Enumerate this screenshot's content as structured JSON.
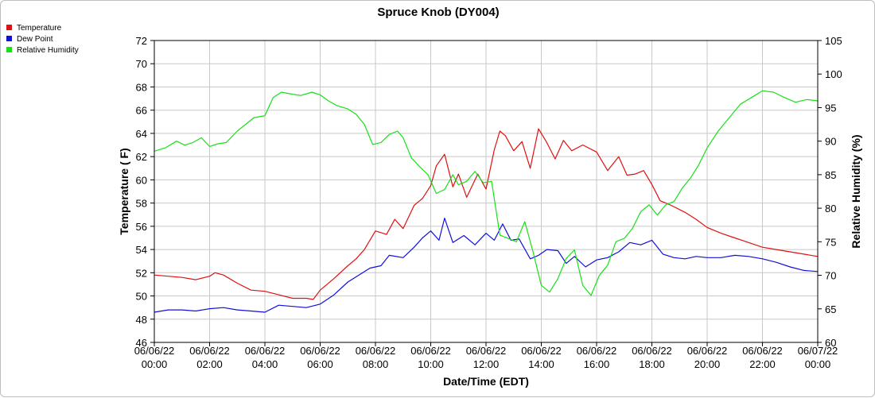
{
  "chart_data": {
    "type": "line",
    "title": "Spruce Knob (DY004)",
    "xlabel": "Date/Time (EDT)",
    "ylabel_left": "Temperature ( F)",
    "ylabel_right": "Relative Humidity (%)",
    "ylim_left": [
      46,
      72
    ],
    "ylim_right": [
      60,
      105
    ],
    "xlim_hours": [
      0,
      24
    ],
    "grid": true,
    "legend_position": "top-left",
    "y_ticks_left": [
      "46",
      "48",
      "50",
      "52",
      "54",
      "56",
      "58",
      "60",
      "62",
      "64",
      "66",
      "68",
      "70",
      "72"
    ],
    "y_ticks_right": [
      "60",
      "65",
      "70",
      "75",
      "80",
      "85",
      "90",
      "95",
      "100",
      "105"
    ],
    "x_tick_labels": [
      {
        "date": "06/06/22",
        "time": "00:00"
      },
      {
        "date": "06/06/22",
        "time": "02:00"
      },
      {
        "date": "06/06/22",
        "time": "04:00"
      },
      {
        "date": "06/06/22",
        "time": "06:00"
      },
      {
        "date": "06/06/22",
        "time": "08:00"
      },
      {
        "date": "06/06/22",
        "time": "10:00"
      },
      {
        "date": "06/06/22",
        "time": "12:00"
      },
      {
        "date": "06/06/22",
        "time": "14:00"
      },
      {
        "date": "06/06/22",
        "time": "16:00"
      },
      {
        "date": "06/06/22",
        "time": "18:00"
      },
      {
        "date": "06/06/22",
        "time": "20:00"
      },
      {
        "date": "06/06/22",
        "time": "22:00"
      },
      {
        "date": "06/07/22",
        "time": "00:00"
      }
    ],
    "series": [
      {
        "name": "Temperature",
        "axis": "left",
        "color": "#e01010",
        "hours": [
          0,
          0.5,
          1,
          1.5,
          2,
          2.2,
          2.5,
          3,
          3.5,
          4,
          4.5,
          5,
          5.5,
          5.75,
          6,
          6.5,
          7,
          7.3,
          7.6,
          8,
          8.4,
          8.7,
          9,
          9.4,
          9.7,
          10,
          10.2,
          10.5,
          10.8,
          11,
          11.3,
          11.7,
          12,
          12.3,
          12.5,
          12.7,
          13,
          13.3,
          13.6,
          13.9,
          14.2,
          14.5,
          14.8,
          15.1,
          15.5,
          16,
          16.4,
          16.8,
          17.1,
          17.4,
          17.7,
          18,
          18.3,
          18.7,
          19.2,
          19.6,
          20,
          20.5,
          21,
          21.5,
          22,
          22.5,
          23,
          23.5,
          24
        ],
        "values": [
          51.8,
          51.7,
          51.6,
          51.4,
          51.7,
          52,
          51.8,
          51.1,
          50.5,
          50.4,
          50.1,
          49.8,
          49.8,
          49.7,
          50.5,
          51.5,
          52.6,
          53.2,
          54,
          55.6,
          55.3,
          56.6,
          55.8,
          57.8,
          58.4,
          59.5,
          61.2,
          62.2,
          59.4,
          60.5,
          58.5,
          60.5,
          59.2,
          62.6,
          64.2,
          63.8,
          62.5,
          63.3,
          61,
          64.4,
          63.2,
          61.8,
          63.4,
          62.5,
          63,
          62.4,
          60.8,
          62,
          60.4,
          60.5,
          60.8,
          59.6,
          58.2,
          57.8,
          57.2,
          56.6,
          55.9,
          55.4,
          55,
          54.6,
          54.2,
          54,
          53.8,
          53.6,
          53.4
        ]
      },
      {
        "name": "Dew Point",
        "axis": "left",
        "color": "#1010d8",
        "hours": [
          0,
          0.5,
          1,
          1.5,
          2,
          2.5,
          3,
          3.5,
          4,
          4.5,
          5,
          5.5,
          6,
          6.5,
          7,
          7.4,
          7.8,
          8.2,
          8.5,
          9,
          9.4,
          9.7,
          10,
          10.3,
          10.5,
          10.8,
          11.2,
          11.6,
          12,
          12.3,
          12.6,
          12.9,
          13.2,
          13.6,
          13.9,
          14.2,
          14.6,
          14.9,
          15.2,
          15.6,
          16,
          16.4,
          16.8,
          17.2,
          17.6,
          18,
          18.4,
          18.8,
          19.2,
          19.6,
          20,
          20.5,
          21,
          21.5,
          22,
          22.5,
          23,
          23.5,
          24
        ],
        "values": [
          48.6,
          48.8,
          48.8,
          48.7,
          48.9,
          49,
          48.8,
          48.7,
          48.6,
          49.2,
          49.1,
          49,
          49.3,
          50.1,
          51.2,
          51.8,
          52.4,
          52.6,
          53.5,
          53.3,
          54.2,
          55,
          55.6,
          54.8,
          56.7,
          54.6,
          55.2,
          54.4,
          55.4,
          54.8,
          56.2,
          54.8,
          54.9,
          53.2,
          53.5,
          54,
          53.9,
          52.8,
          53.4,
          52.5,
          53.1,
          53.3,
          53.8,
          54.6,
          54.4,
          54.8,
          53.6,
          53.3,
          53.2,
          53.4,
          53.3,
          53.3,
          53.5,
          53.4,
          53.2,
          52.9,
          52.5,
          52.2,
          52.1
        ]
      },
      {
        "name": "Relative Humidity",
        "axis": "right",
        "color": "#18e018",
        "hours": [
          0,
          0.4,
          0.8,
          1.1,
          1.4,
          1.7,
          2,
          2.3,
          2.6,
          3,
          3.3,
          3.6,
          4,
          4.3,
          4.6,
          5,
          5.3,
          5.7,
          6,
          6.3,
          6.6,
          7,
          7.3,
          7.6,
          7.9,
          8.2,
          8.5,
          8.8,
          9,
          9.3,
          9.6,
          9.9,
          10.2,
          10.5,
          10.8,
          11,
          11.3,
          11.6,
          11.9,
          12.2,
          12.5,
          12.8,
          13.1,
          13.4,
          13.7,
          14,
          14.3,
          14.6,
          14.9,
          15.2,
          15.5,
          15.8,
          16.1,
          16.4,
          16.7,
          17,
          17.3,
          17.6,
          17.9,
          18.2,
          18.5,
          18.8,
          19.1,
          19.4,
          19.7,
          20,
          20.4,
          20.8,
          21.2,
          21.6,
          22,
          22.4,
          22.8,
          23.2,
          23.6,
          24
        ],
        "values": [
          88.5,
          89,
          90,
          89.4,
          89.8,
          90.5,
          89.2,
          89.6,
          89.8,
          91.5,
          92.5,
          93.5,
          93.8,
          96.5,
          97.3,
          97,
          96.8,
          97.3,
          96.9,
          96,
          95.3,
          94.8,
          94,
          92.5,
          89.5,
          89.8,
          91,
          91.5,
          90.5,
          87.5,
          86.2,
          85,
          82.2,
          82.8,
          85,
          83.5,
          84,
          85.5,
          83.8,
          84,
          76,
          75.5,
          75,
          78,
          73.5,
          68.5,
          67.5,
          69.5,
          72.5,
          73.8,
          68.5,
          67,
          70,
          71.5,
          75,
          75.5,
          77,
          79.5,
          80.5,
          79,
          80.5,
          81,
          83,
          84.5,
          86.5,
          89,
          91.5,
          93.5,
          95.5,
          96.5,
          97.5,
          97.3,
          96.5,
          95.8,
          96.2,
          96
        ]
      }
    ]
  }
}
